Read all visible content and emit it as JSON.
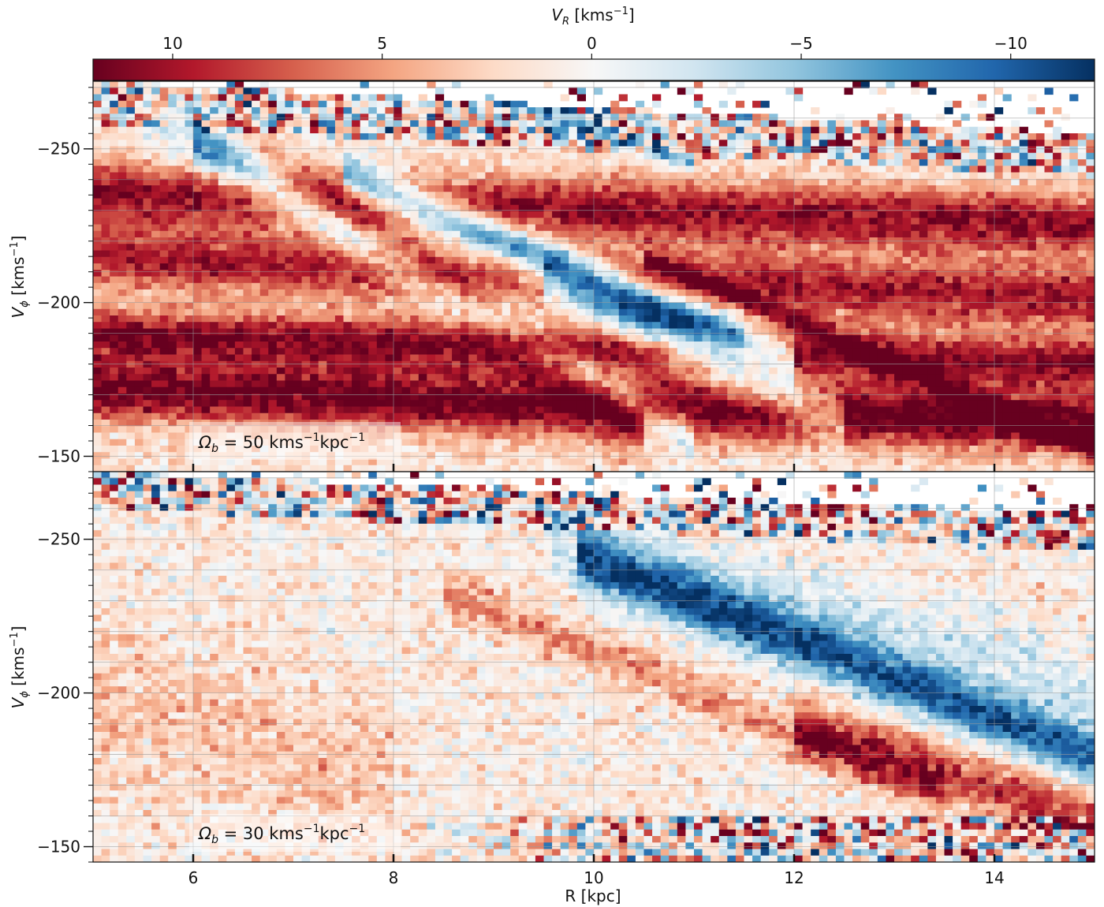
{
  "colorbar": {
    "label_main": "V",
    "label_sub": "R",
    "label_unit": " [kms",
    "label_unit_exp": "−1",
    "label_close": "]",
    "range": [
      11.9,
      -12.0
    ],
    "ticks": [
      {
        "value": 10,
        "label": "10"
      },
      {
        "value": 5,
        "label": "5"
      },
      {
        "value": 0,
        "label": "0"
      },
      {
        "value": -5,
        "label": "−5"
      },
      {
        "value": -10,
        "label": "−10"
      }
    ],
    "colormap": "RdBu",
    "colors": [
      "#67001f",
      "#b2182b",
      "#d6604d",
      "#f4a582",
      "#fddbc7",
      "#f7f7f7",
      "#d1e5f0",
      "#92c5de",
      "#4393c3",
      "#2166ac",
      "#053061"
    ]
  },
  "axes": {
    "x": {
      "label": "R [kpc]",
      "range": [
        5,
        15
      ],
      "ticks": [
        {
          "value": 6,
          "label": "6"
        },
        {
          "value": 8,
          "label": "8"
        },
        {
          "value": 10,
          "label": "10"
        },
        {
          "value": 12,
          "label": "12"
        },
        {
          "value": 14,
          "label": "14"
        }
      ]
    },
    "y": {
      "label_main": "V",
      "label_sub": "ϕ",
      "label_unit": " [kms",
      "label_unit_exp": "−1",
      "label_close": "]",
      "range": [
        -145,
        -272
      ],
      "ticks": [
        {
          "value": -250,
          "label": "−250"
        },
        {
          "value": -200,
          "label": "−200"
        },
        {
          "value": -150,
          "label": "−150"
        }
      ]
    }
  },
  "panels": [
    {
      "id": "top",
      "annotation": {
        "prefix": "Ω",
        "sub": "b",
        "mid": " = 50 kms",
        "exp1": "−1",
        "unit2": "kpc",
        "exp2": "−1"
      }
    },
    {
      "id": "bottom",
      "annotation": {
        "prefix": "Ω",
        "sub": "b",
        "mid": " = 30 kms",
        "exp1": "−1",
        "unit2": "kpc",
        "exp2": "−1"
      }
    }
  ],
  "chart_data": [
    {
      "type": "heatmap",
      "panel": "top",
      "title": "Ωb = 50 kms−1kpc−1",
      "xlabel": "R [kpc]",
      "ylabel": "Vϕ [kms−1]",
      "colorbar_label": "VR [kms−1]",
      "xlim": [
        5,
        15
      ],
      "ylim": [
        -145,
        -272
      ],
      "clim": [
        11.9,
        -12.0
      ],
      "grid": true,
      "background_vr": 1.5,
      "noise_vr": 2.5,
      "features": [
        {
          "kind": "band",
          "R": [
            5.0,
            15.0
          ],
          "vphi": [
            -236,
            -225
          ],
          "width": 10,
          "vr": 12
        },
        {
          "kind": "band",
          "R": [
            5.0,
            15.0
          ],
          "vphi": [
            -215,
            -201
          ],
          "width": 10,
          "vr": 11
        },
        {
          "kind": "band",
          "R": [
            5.0,
            15.0
          ],
          "vphi": [
            -190,
            -180
          ],
          "width": 8,
          "vr": 12
        },
        {
          "kind": "band",
          "R": [
            5.0,
            15.0
          ],
          "vphi": [
            -170,
            -159
          ],
          "width": 9,
          "vr": 11
        },
        {
          "kind": "band",
          "R": [
            5.0,
            15.0
          ],
          "vphi": [
            -178,
            -165
          ],
          "width": 9,
          "vr": 6
        },
        {
          "kind": "band",
          "R": [
            6.3,
            10.5
          ],
          "vphi": [
            -262,
            -156
          ],
          "width": 8,
          "vr": 6.5
        },
        {
          "kind": "band",
          "R": [
            6.0,
            11.0
          ],
          "vphi": [
            -252,
            -155
          ],
          "width": 7,
          "vr": -6
        },
        {
          "kind": "band",
          "R": [
            7.5,
            12.0
          ],
          "vphi": [
            -242,
            -180
          ],
          "width": 6,
          "vr": -10
        },
        {
          "kind": "band",
          "R": [
            9.5,
            12.5
          ],
          "vphi": [
            -210,
            -160
          ],
          "width": 8,
          "vr": -7
        },
        {
          "kind": "band",
          "R": [
            5.5,
            11.5
          ],
          "vphi": [
            -258,
            -186
          ],
          "width": 14,
          "vr": -2.5
        },
        {
          "kind": "band",
          "R": [
            8.5,
            15.0
          ],
          "vphi": [
            -275,
            -255
          ],
          "width": 4,
          "vr": 1
        },
        {
          "kind": "band",
          "R": [
            10.5,
            15.0
          ],
          "vphi": [
            -215,
            -152
          ],
          "width": 3,
          "vr": 8
        },
        {
          "kind": "band",
          "R": [
            12.0,
            15.0
          ],
          "vphi": [
            -195,
            -150
          ],
          "width": 5,
          "vr": 4
        },
        {
          "kind": "band",
          "R": [
            9.0,
            11.0
          ],
          "vphi": [
            -268,
            -245
          ],
          "width": 3,
          "vr": -8
        },
        {
          "kind": "boundary",
          "R": [
            5.0,
            15.0
          ],
          "vphi": [
            -272,
            -255
          ],
          "noise_width": 14
        }
      ]
    },
    {
      "type": "heatmap",
      "panel": "bottom",
      "title": "Ωb = 30 kms−1kpc−1",
      "xlabel": "R [kpc]",
      "ylabel": "Vϕ [kms−1]",
      "colorbar_label": "VR [kms−1]",
      "xlim": [
        5,
        15
      ],
      "ylim": [
        -145,
        -272
      ],
      "clim": [
        11.9,
        -12.0
      ],
      "grid": true,
      "background_vr": 1.0,
      "noise_vr": 3.0,
      "features": [
        {
          "kind": "band",
          "R": [
            9.8,
            15.0
          ],
          "vphi": [
            -245,
            -179
          ],
          "width": 9,
          "vr": -11
        },
        {
          "kind": "band",
          "R": [
            9.5,
            15.0
          ],
          "vphi": [
            -254,
            -200
          ],
          "width": 14,
          "vr": -2.5
        },
        {
          "kind": "band",
          "R": [
            8.5,
            13.5
          ],
          "vphi": [
            -233,
            -167
          ],
          "width": 7,
          "vr": 6
        },
        {
          "kind": "band",
          "R": [
            12.0,
            15.0
          ],
          "vphi": [
            -190,
            -158
          ],
          "width": 10,
          "vr": 9
        },
        {
          "kind": "band",
          "R": [
            5.0,
            8.0
          ],
          "vphi": [
            -200,
            -170
          ],
          "width": 25,
          "vr": 3.5
        },
        {
          "kind": "boundary",
          "R": [
            5.0,
            15.0
          ],
          "vphi": [
            -272,
            -258
          ],
          "noise_width": 12
        },
        {
          "kind": "noise_region",
          "R": [
            8.0,
            15.0
          ],
          "vphi_max": -160,
          "strength": 10
        }
      ]
    }
  ]
}
